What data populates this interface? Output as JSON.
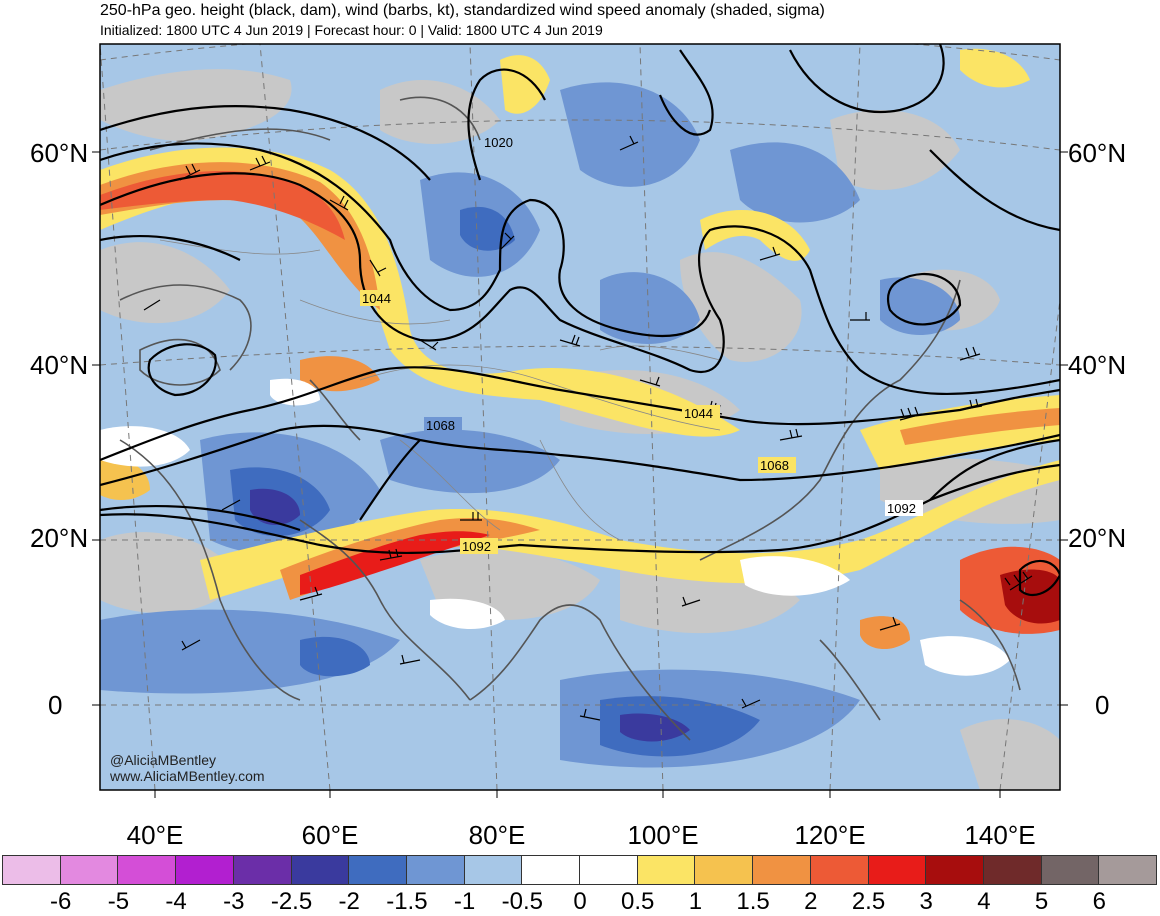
{
  "title": "250-hPa geo. height (black, dam), wind (barbs, kt), standardized wind speed anomaly (shaded, sigma)",
  "subtitle": "Initialized: 1800 UTC 4 Jun 2019 | Forecast hour: 0 | Valid: 1800 UTC 4 Jun 2019",
  "latitude_labels": [
    "60°N",
    "40°N",
    "20°N",
    "0"
  ],
  "longitude_labels": [
    "40°E",
    "60°E",
    "80°E",
    "100°E",
    "120°E",
    "140°E"
  ],
  "contour_labels": [
    "1020",
    "1044",
    "1068",
    "1044",
    "1068",
    "1092",
    "1092"
  ],
  "credits": {
    "handle": "@AliciaMBentley",
    "website": "www.AliciaMBentley.com"
  },
  "colorbar": {
    "ticks": [
      "-6",
      "-5",
      "-4",
      "-3",
      "-2.5",
      "-2",
      "-1.5",
      "-1",
      "-0.5",
      "0",
      "0.5",
      "1",
      "1.5",
      "2",
      "2.5",
      "3",
      "4",
      "5",
      "6"
    ],
    "colors": [
      "#ecbde8",
      "#e389e0",
      "#d44ed7",
      "#b21fd0",
      "#6b2ea8",
      "#3a3a9e",
      "#3f6cbf",
      "#6f96d3",
      "#a7c7e7",
      "#ffffff",
      "#ffffff",
      "#fbe465",
      "#f5c24f",
      "#f09242",
      "#ed5a36",
      "#e81c19",
      "#a70d0d",
      "#6f2a2a",
      "#736566",
      "#a59a9a"
    ]
  },
  "colors": {
    "land_gray": "#c8c8c8",
    "contour": "#000000",
    "border": "#555555"
  }
}
